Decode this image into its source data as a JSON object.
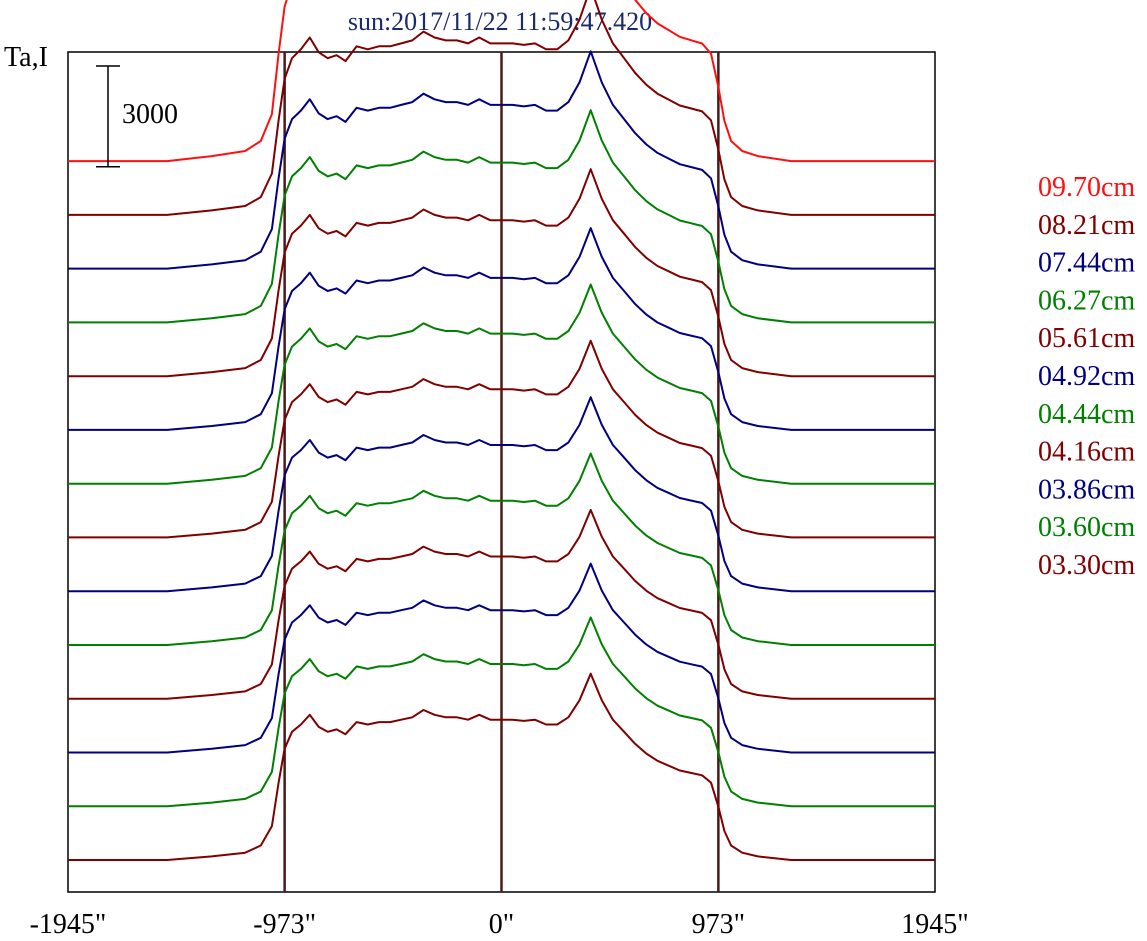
{
  "chart_data": {
    "type": "line",
    "title": "sun:2017/11/22 11:59:47.420",
    "ylabel": "Ta,I",
    "scale_bar_label": "3000",
    "scale_bar_value": 3000,
    "xlim": [
      -1945,
      1945
    ],
    "xticks": [
      {
        "value": -1945,
        "label": "-1945\""
      },
      {
        "value": -973,
        "label": "-973\""
      },
      {
        "value": 0,
        "label": "0\""
      },
      {
        "value": 973,
        "label": "973\""
      },
      {
        "value": 1945,
        "label": "1945\""
      }
    ],
    "vertical_lines": [
      -973,
      0,
      973
    ],
    "offset_step": 1600,
    "ylim": [
      0,
      25000
    ],
    "x": [
      -1945,
      -1500,
      -1300,
      -1150,
      -1080,
      -1030,
      -1000,
      -973,
      -940,
      -900,
      -860,
      -820,
      -780,
      -740,
      -700,
      -650,
      -600,
      -550,
      -500,
      -450,
      -400,
      -350,
      -300,
      -250,
      -200,
      -150,
      -100,
      -50,
      0,
      50,
      100,
      150,
      200,
      250,
      300,
      350,
      400,
      450,
      500,
      550,
      600,
      650,
      700,
      750,
      800,
      850,
      900,
      940,
      973,
      1000,
      1030,
      1080,
      1150,
      1300,
      1500,
      1945
    ],
    "series": [
      {
        "name": "09.70cm",
        "color": "#ff1010",
        "baseline": 17600,
        "amplitude": 1.0
      },
      {
        "name": "08.21cm",
        "color": "#800000",
        "baseline": 16000,
        "amplitude": 0.88
      },
      {
        "name": "07.44cm",
        "color": "#000080",
        "baseline": 14400,
        "amplitude": 0.84
      },
      {
        "name": "06.27cm",
        "color": "#008000",
        "baseline": 12800,
        "amplitude": 0.82
      },
      {
        "name": "05.61cm",
        "color": "#800000",
        "baseline": 11200,
        "amplitude": 0.8
      },
      {
        "name": "04.92cm",
        "color": "#000080",
        "baseline": 9600,
        "amplitude": 0.78
      },
      {
        "name": "04.44cm",
        "color": "#008000",
        "baseline": 8000,
        "amplitude": 0.77
      },
      {
        "name": "04.16cm",
        "color": "#800000",
        "baseline": 6400,
        "amplitude": 0.76
      },
      {
        "name": "03.86cm",
        "color": "#000080",
        "baseline": 4800,
        "amplitude": 0.75
      },
      {
        "name": "03.60cm",
        "color": "#008000",
        "baseline": 3200,
        "amplitude": 0.74
      },
      {
        "name": "03.30cm",
        "color": "#800000",
        "baseline": 1600,
        "amplitude": 0.73
      },
      {
        "name": "",
        "color": "#000080",
        "baseline": 0,
        "amplitude": 0.73
      },
      {
        "name": "",
        "color": "#008000",
        "baseline": -1600,
        "amplitude": 0.73
      },
      {
        "name": "",
        "color": "#800000",
        "baseline": -3200,
        "amplitude": 0.72
      }
    ],
    "base_profile": [
      0,
      0,
      150,
      300,
      600,
      1400,
      3200,
      4600,
      5300,
      5600,
      6000,
      5500,
      5300,
      5400,
      5200,
      5700,
      5600,
      5700,
      5700,
      5800,
      5900,
      6200,
      6000,
      5900,
      5900,
      5800,
      6000,
      5800,
      5800,
      5800,
      5750,
      5800,
      5600,
      5600,
      5900,
      6600,
      7700,
      6600,
      5800,
      5300,
      4800,
      4400,
      4100,
      3900,
      3700,
      3600,
      3500,
      3200,
      2200,
      1200,
      600,
      300,
      150,
      0,
      0,
      0
    ],
    "legend_placement": "right"
  }
}
